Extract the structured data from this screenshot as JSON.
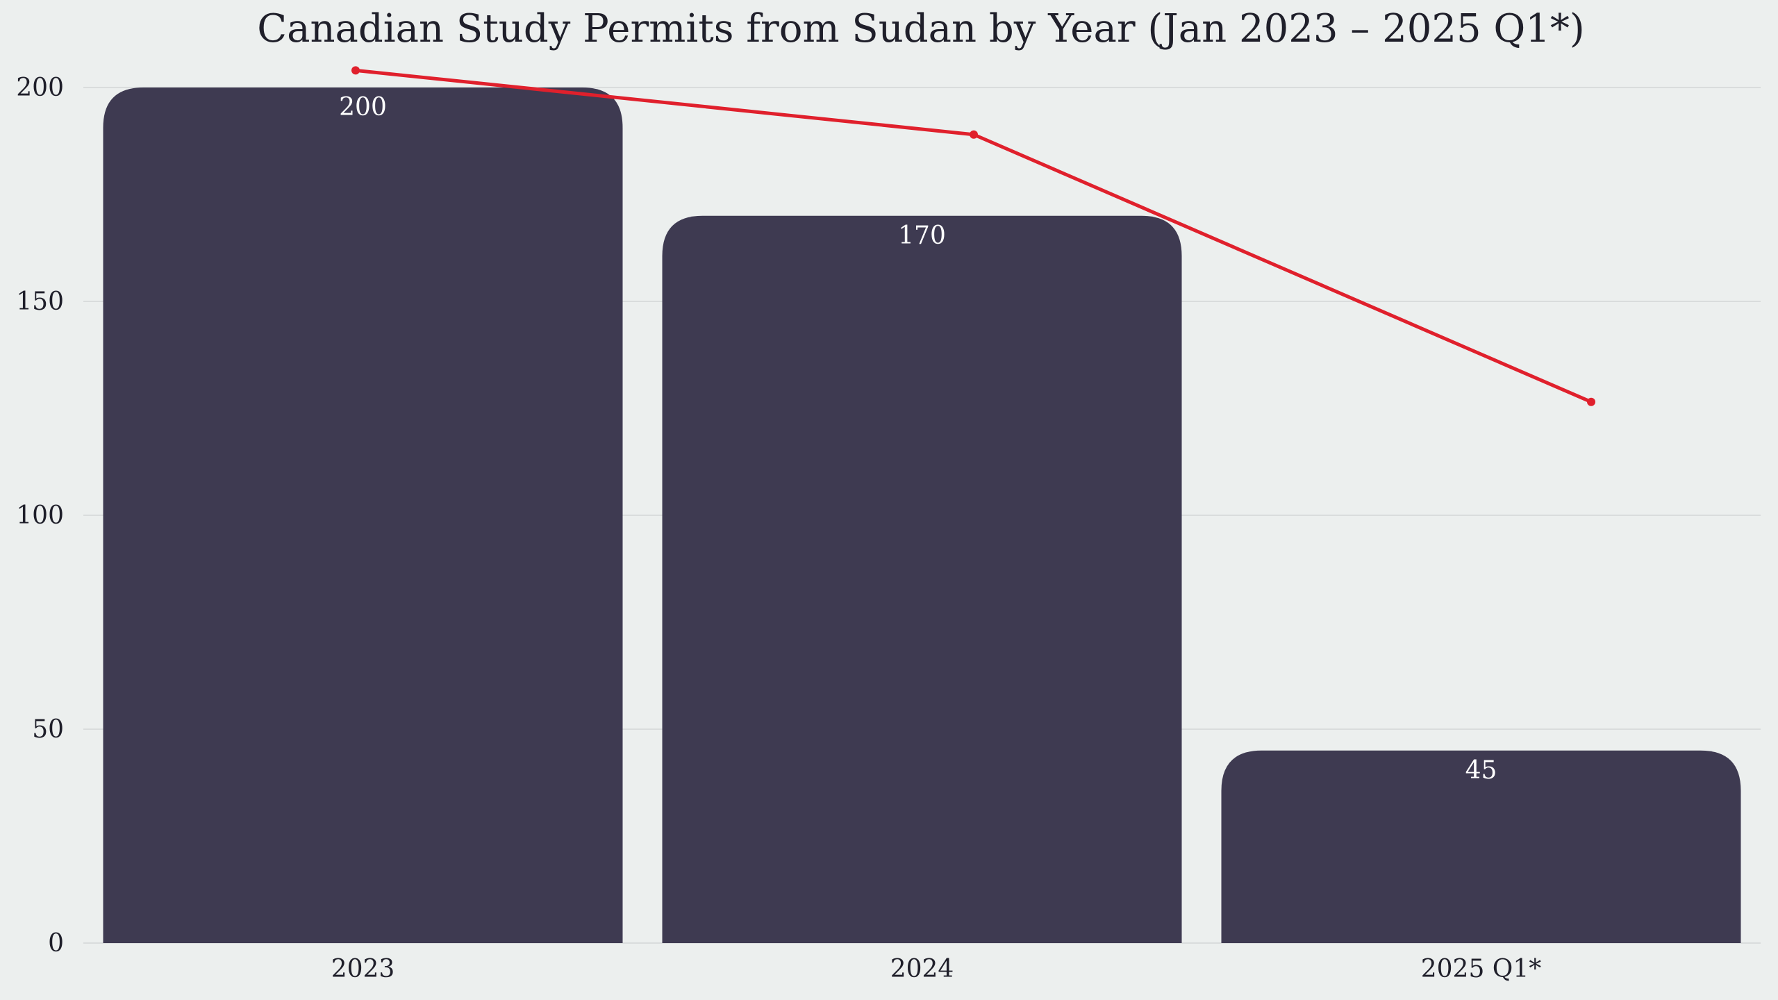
{
  "chart_data": {
    "type": "bar",
    "title": "Canadian Study Permits from Sudan by Year (Jan 2023 – 2025 Q1*)",
    "xlabel": "",
    "ylabel": "",
    "categories": [
      "2023",
      "2024",
      "2025 Q1*"
    ],
    "values": [
      200,
      170,
      45
    ],
    "data_labels": [
      "200",
      "170",
      "45"
    ],
    "ylim": [
      0,
      210
    ],
    "yticks": [
      0,
      50,
      100,
      150,
      200
    ],
    "ytick_labels": [
      "0",
      "50",
      "100",
      "150",
      "200"
    ],
    "grid": true,
    "overlay_line": {
      "type": "line",
      "values": [
        204,
        189,
        126.5
      ]
    },
    "colors": {
      "bar": "#3e3a51",
      "line": "#e0202c",
      "background": "#ecefee",
      "grid": "#d9dcdc"
    }
  }
}
